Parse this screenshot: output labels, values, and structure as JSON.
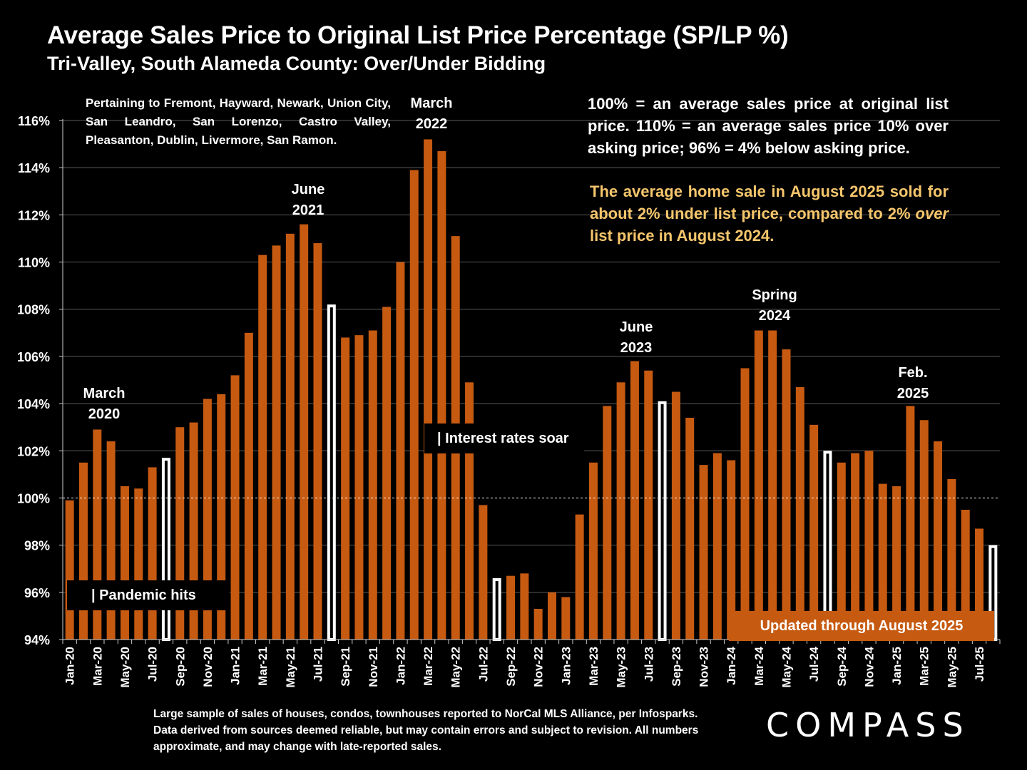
{
  "header": {
    "title": "Average Sales Price to Original List Price Percentage (SP/LP %)",
    "subtitle": "Tri-Valley, South Alameda County:  Over/Under Bidding"
  },
  "notes": {
    "pertaining": "Pertaining to Fremont, Hayward, Newark, Union City, San Leandro, San Lorenzo, Castro Valley, Pleasanton, Dublin, Livermore, San Ramon.",
    "explanation": "100% = an average sales price at original list price. 110% = an average sales price 10% over asking price; 96% = 4% below asking price.",
    "highlight_part1": "The average home sale in August 2025 sold for about 2% under list price, compared to 2%",
    "highlight_italic": "over",
    "highlight_part2": "list price in August 2024.",
    "footnote": "Large sample of sales of houses, condos, townhouses reported to NorCal MLS Alliance, per Infosparks. Data derived from sources deemed reliable, but may contain errors and subject to revision. All numbers approximate, and may change with late-reported sales.",
    "logo": "COMPASS"
  },
  "annotations": {
    "march2020": {
      "line1": "March",
      "line2": "2020"
    },
    "june2021": {
      "line1": "June",
      "line2": "2021"
    },
    "march2022": {
      "line1": "March",
      "line2": "2022"
    },
    "june2023": {
      "line1": "June",
      "line2": "2023"
    },
    "spring2024": {
      "line1": "Spring",
      "line2": "2024"
    },
    "feb2025": {
      "line1": "Feb.",
      "line2": "2025"
    }
  },
  "events": {
    "pandemic": "| Pandemic hits",
    "rates": "| Interest rates soar",
    "updated": "Updated through August 2025"
  },
  "colors": {
    "bar": "#c65a11",
    "highlight_bar": "#ffffff",
    "highlight_text": "#f6c66c",
    "background": "#000000"
  },
  "chart_data": {
    "type": "bar",
    "ylim": [
      94,
      116
    ],
    "yticks": [
      "94%",
      "96%",
      "98%",
      "100%",
      "102%",
      "104%",
      "106%",
      "108%",
      "110%",
      "112%",
      "114%",
      "116%"
    ],
    "reference_line": 100,
    "grid": true,
    "categories": [
      "Jan-20",
      "Feb-20",
      "Mar-20",
      "Apr-20",
      "May-20",
      "Jun-20",
      "Jul-20",
      "Aug-20",
      "Sep-20",
      "Oct-20",
      "Nov-20",
      "Dec-20",
      "Jan-21",
      "Feb-21",
      "Mar-21",
      "Apr-21",
      "May-21",
      "Jun-21",
      "Jul-21",
      "Aug-21",
      "Sep-21",
      "Oct-21",
      "Nov-21",
      "Dec-21",
      "Jan-22",
      "Feb-22",
      "Mar-22",
      "Apr-22",
      "May-22",
      "Jun-22",
      "Jul-22",
      "Aug-22",
      "Sep-22",
      "Oct-22",
      "Nov-22",
      "Dec-22",
      "Jan-23",
      "Feb-23",
      "Mar-23",
      "Apr-23",
      "May-23",
      "Jun-23",
      "Jul-23",
      "Aug-23",
      "Sep-23",
      "Oct-23",
      "Nov-23",
      "Dec-23",
      "Jan-24",
      "Feb-24",
      "Mar-24",
      "Apr-24",
      "May-24",
      "Jun-24",
      "Jul-24",
      "Aug-24",
      "Sep-24",
      "Oct-24",
      "Nov-24",
      "Dec-24",
      "Jan-25",
      "Feb-25",
      "Mar-25",
      "Apr-25",
      "May-25",
      "Jun-25",
      "Jul-25",
      "Aug-25"
    ],
    "xtick_labels": [
      "Jan-20",
      "",
      "Mar-20",
      "",
      "May-20",
      "",
      "Jul-20",
      "",
      "Sep-20",
      "",
      "Nov-20",
      "",
      "Jan-21",
      "",
      "Mar-21",
      "",
      "May-21",
      "",
      "Jul-21",
      "",
      "Sep-21",
      "",
      "Nov-21",
      "",
      "Jan-22",
      "",
      "Mar-22",
      "",
      "May-22",
      "",
      "Jul-22",
      "",
      "Sep-22",
      "",
      "Nov-22",
      "",
      "Jan-23",
      "",
      "Mar-23",
      "",
      "May-23",
      "",
      "Jul-23",
      "",
      "Sep-23",
      "",
      "Nov-23",
      "",
      "Jan-24",
      "",
      "Mar-24",
      "",
      "May-24",
      "",
      "Jul-24",
      "",
      "Sep-24",
      "",
      "Nov-24",
      "",
      "Jan-25",
      "",
      "Mar-25",
      "",
      "May-25",
      "",
      "Jul-25",
      ""
    ],
    "values": [
      99.9,
      101.5,
      102.9,
      102.4,
      100.5,
      100.4,
      101.3,
      101.7,
      103.0,
      103.2,
      104.2,
      104.4,
      105.2,
      107.0,
      110.3,
      110.7,
      111.2,
      111.6,
      110.8,
      108.2,
      106.8,
      106.9,
      107.1,
      108.1,
      110.0,
      113.9,
      115.2,
      114.7,
      111.1,
      104.9,
      99.7,
      96.6,
      96.7,
      96.8,
      95.3,
      96.0,
      95.8,
      99.3,
      101.5,
      103.9,
      104.9,
      105.8,
      105.4,
      104.1,
      104.5,
      103.4,
      101.4,
      101.9,
      101.6,
      105.5,
      107.1,
      107.1,
      106.3,
      104.7,
      103.1,
      102.0,
      101.5,
      101.9,
      102.0,
      100.6,
      100.5,
      103.9,
      103.3,
      102.4,
      100.8,
      99.5,
      98.7,
      98.0
    ],
    "highlighted": [
      "Aug-20",
      "Aug-21",
      "Aug-22",
      "Aug-23",
      "Aug-24",
      "Aug-25"
    ]
  }
}
